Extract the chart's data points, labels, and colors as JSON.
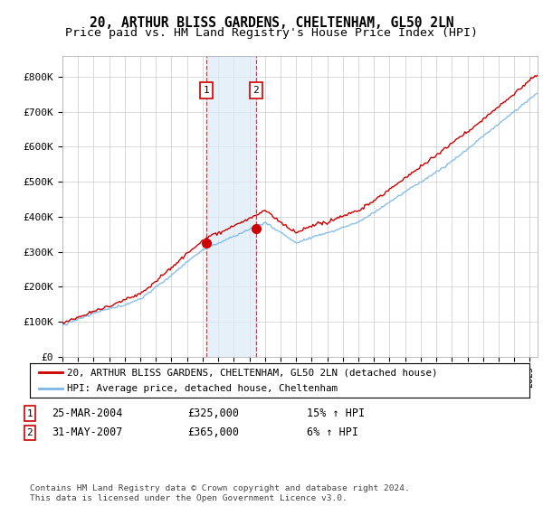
{
  "title": "20, ARTHUR BLISS GARDENS, CHELTENHAM, GL50 2LN",
  "subtitle": "Price paid vs. HM Land Registry's House Price Index (HPI)",
  "title_fontsize": 10.5,
  "subtitle_fontsize": 9.5,
  "hpi_color": "#7ab8e8",
  "price_color": "#cc0000",
  "marker_color": "#cc0000",
  "sale1_x": 2004.23,
  "sale1_y": 325000,
  "sale1_label": "1",
  "sale2_x": 2007.42,
  "sale2_y": 365000,
  "sale2_label": "2",
  "shade_color": "#daeaf7",
  "shade_alpha": 0.7,
  "legend_line1": "20, ARTHUR BLISS GARDENS, CHELTENHAM, GL50 2LN (detached house)",
  "legend_line2": "HPI: Average price, detached house, Cheltenham",
  "table_row1": [
    "1",
    "25-MAR-2004",
    "£325,000",
    "15% ↑ HPI"
  ],
  "table_row2": [
    "2",
    "31-MAY-2007",
    "£365,000",
    "6% ↑ HPI"
  ],
  "footnote": "Contains HM Land Registry data © Crown copyright and database right 2024.\nThis data is licensed under the Open Government Licence v3.0.",
  "background_color": "#ffffff",
  "grid_color": "#cccccc",
  "xlim_start": 1995.0,
  "xlim_end": 2025.5,
  "ylim": [
    0,
    860000
  ],
  "yticks": [
    0,
    100000,
    200000,
    300000,
    400000,
    500000,
    600000,
    700000,
    800000
  ],
  "ytick_labels": [
    "£0",
    "£100K",
    "£200K",
    "£300K",
    "£400K",
    "£500K",
    "£600K",
    "£700K",
    "£800K"
  ]
}
